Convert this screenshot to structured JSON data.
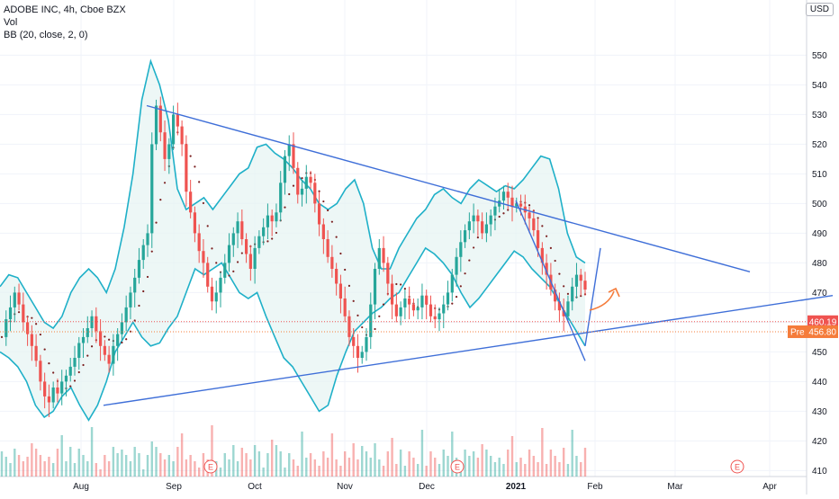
{
  "header": {
    "title": "ADOBE INC, 4h, Cboe BZX",
    "vol_label": "Vol",
    "indicator_label": "BB (20, close, 2, 0)",
    "currency": "USD"
  },
  "colors": {
    "up": "#26a69a",
    "down": "#ef5350",
    "bb_band": "#1fb0c8",
    "bb_fill": "#e7f4f3",
    "bb_basis": "#7b1f1f",
    "trendline": "#3f6fd8",
    "arrow": "#f57c3b",
    "last_price_bg": "#ef5350",
    "pre_price_bg": "#f57c3b",
    "volume": "#ef5350"
  },
  "price_labels": {
    "last": "460.19",
    "pre_tag": "Pre",
    "pre": "456.80"
  },
  "earnings_marker": "E",
  "chart_data": {
    "type": "candlestick",
    "title": "ADOBE INC, 4h, Cboe BZX",
    "ylabel": "",
    "ylim": [
      405,
      555
    ],
    "y_ticks": [
      410,
      420,
      430,
      440,
      450,
      460,
      470,
      480,
      490,
      500,
      510,
      520,
      530,
      540,
      550
    ],
    "x_ticks": [
      "Aug",
      "Sep",
      "Oct",
      "Nov",
      "Dec",
      "2021",
      "Feb",
      "Mar",
      "Apr"
    ],
    "close_trace": [
      455,
      461,
      465,
      470,
      466,
      460,
      456,
      452,
      447,
      440,
      435,
      433,
      438,
      436,
      440,
      442,
      445,
      448,
      453,
      455,
      458,
      462,
      457,
      452,
      449,
      446,
      452,
      456,
      460,
      465,
      470,
      475,
      481,
      486,
      490,
      520,
      533,
      524,
      515,
      520,
      530,
      526,
      520,
      504,
      497,
      490,
      484,
      480,
      472,
      467,
      470,
      475,
      480,
      486,
      490,
      494,
      488,
      483,
      478,
      485,
      489,
      492,
      496,
      494,
      497,
      507,
      516,
      520,
      512,
      503,
      505,
      509,
      507,
      500,
      493,
      488,
      482,
      478,
      473,
      468,
      462,
      455,
      452,
      448,
      450,
      455,
      466,
      478,
      485,
      480,
      473,
      466,
      462,
      465,
      468,
      466,
      464,
      465,
      469,
      466,
      462,
      461,
      463,
      466,
      470,
      476,
      482,
      487,
      491,
      494,
      496,
      494,
      490,
      493,
      496,
      499,
      501,
      504,
      502,
      499,
      500,
      499,
      497,
      495,
      491,
      485,
      480,
      476,
      471,
      467,
      464,
      462,
      467,
      472,
      476,
      474,
      471
    ],
    "bollinger": {
      "period": 20,
      "stddev": 2,
      "upper_trace": [
        472,
        476,
        475,
        470,
        465,
        460,
        458,
        462,
        470,
        475,
        478,
        475,
        470,
        478,
        492,
        510,
        535,
        548,
        540,
        528,
        505,
        498,
        500,
        502,
        498,
        502,
        506,
        510,
        512,
        519,
        520,
        517,
        515,
        512,
        508,
        505,
        500,
        498,
        500,
        505,
        508,
        500,
        485,
        478,
        478,
        485,
        490,
        495,
        498,
        503,
        505,
        502,
        500,
        505,
        508,
        506,
        504,
        506,
        505,
        508,
        512,
        516,
        515,
        505,
        490,
        482,
        480
      ],
      "lower_trace": [
        450,
        448,
        445,
        440,
        432,
        428,
        430,
        435,
        438,
        432,
        427,
        432,
        440,
        450,
        455,
        460,
        455,
        452,
        453,
        458,
        462,
        470,
        478,
        476,
        478,
        480,
        475,
        470,
        468,
        470,
        462,
        455,
        448,
        445,
        440,
        435,
        430,
        432,
        442,
        450,
        457,
        460,
        463,
        465,
        468,
        470,
        475,
        480,
        485,
        483,
        480,
        476,
        470,
        465,
        468,
        472,
        476,
        480,
        484,
        482,
        478,
        475,
        472,
        467,
        462,
        457,
        452
      ]
    },
    "trendlines": [
      {
        "from": [
          "Sep",
          533
        ],
        "to": [
          "Mar",
          477
        ]
      },
      {
        "from": [
          "Aug",
          432
        ],
        "to": [
          "Apr",
          469
        ]
      },
      {
        "from": [
          "Jan",
          501
        ],
        "to": [
          "Jan end",
          447
        ]
      },
      {
        "from": [
          "Jan end",
          452
        ],
        "to": [
          "Feb",
          485
        ]
      }
    ],
    "earnings_dates": [
      "Sep",
      "Dec",
      "Mar"
    ],
    "last_price": 460.19,
    "premarket_price": 456.8,
    "grid": true,
    "legend": "top-left"
  }
}
